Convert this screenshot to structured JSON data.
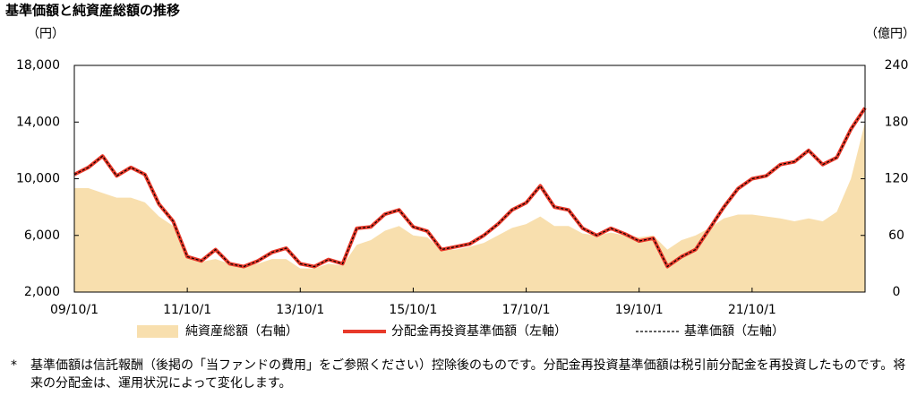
{
  "chart_data": {
    "type": "line",
    "title": "基準価額と純資産総額の推移",
    "y_label": "（円）",
    "y2_label": "（億円）",
    "footnote_marker": "*",
    "footnote": "基準価額は信託報酬（後掲の「当ファンドの費用」をご参照ください）控除後のものです。分配金再投資基準価額は税引前分配金を再投資したものです。将来の分配金は、運用状況によって変化します。",
    "x": [
      "09/10/1",
      "10/01/1",
      "10/04/1",
      "10/07/1",
      "10/10/1",
      "11/01/1",
      "11/04/1",
      "11/07/1",
      "11/10/1",
      "12/01/1",
      "12/04/1",
      "12/07/1",
      "12/10/1",
      "13/01/1",
      "13/04/1",
      "13/07/1",
      "13/10/1",
      "14/01/1",
      "14/04/1",
      "14/07/1",
      "14/10/1",
      "15/01/1",
      "15/04/1",
      "15/07/1",
      "15/10/1",
      "16/01/1",
      "16/04/1",
      "16/07/1",
      "16/10/1",
      "17/01/1",
      "17/04/1",
      "17/07/1",
      "17/10/1",
      "18/01/1",
      "18/04/1",
      "18/07/1",
      "18/10/1",
      "19/01/1",
      "19/04/1",
      "19/07/1",
      "19/10/1",
      "20/01/1",
      "20/04/1",
      "20/07/1",
      "20/10/1",
      "21/01/1",
      "21/04/1",
      "21/07/1",
      "21/10/1",
      "22/01/1",
      "22/04/1",
      "22/07/1",
      "22/10/1",
      "23/01/1",
      "23/04/1",
      "23/07/1",
      "23/10/1"
    ],
    "xticks": [
      "09/10/1",
      "11/10/1",
      "13/10/1",
      "15/10/1",
      "17/10/1",
      "19/10/1",
      "21/10/1"
    ],
    "ylim": [
      2000,
      18000
    ],
    "yticks": [
      {
        "value": 2000,
        "label": "2,000"
      },
      {
        "value": 6000,
        "label": "6,000"
      },
      {
        "value": 10000,
        "label": "10,000"
      },
      {
        "value": 14000,
        "label": "14,000"
      },
      {
        "value": 18000,
        "label": "18,000"
      }
    ],
    "y2lim": [
      0,
      240
    ],
    "y2ticks": [
      0,
      60,
      120,
      180,
      240
    ],
    "series": [
      {
        "name": "純資産総額（右軸）",
        "color": "#f8dfae",
        "kind": "area",
        "axis": "y2",
        "values": [
          110,
          110,
          105,
          100,
          100,
          95,
          80,
          70,
          40,
          32,
          35,
          30,
          28,
          30,
          35,
          35,
          25,
          25,
          30,
          28,
          50,
          55,
          65,
          70,
          60,
          58,
          45,
          45,
          48,
          52,
          60,
          68,
          72,
          80,
          70,
          70,
          62,
          60,
          63,
          60,
          58,
          60,
          45,
          55,
          60,
          68,
          78,
          82,
          82,
          80,
          78,
          75,
          78,
          75,
          85,
          120,
          180
        ]
      },
      {
        "name": "分配金再投資基準価額（左軸）",
        "color": "#e8392a",
        "kind": "line",
        "line_style": "solid",
        "values": [
          10300,
          10800,
          11600,
          10200,
          10800,
          10300,
          8200,
          7000,
          4500,
          4200,
          5000,
          4000,
          3800,
          4200,
          4800,
          5100,
          4000,
          3800,
          4300,
          4000,
          6500,
          6600,
          7500,
          7800,
          6600,
          6300,
          5000,
          5200,
          5400,
          6000,
          6800,
          7800,
          8300,
          9500,
          8000,
          7800,
          6500,
          6000,
          6500,
          6100,
          5600,
          5800,
          3800,
          4500,
          5000,
          6500,
          8000,
          9300,
          10000,
          10200,
          11000,
          11200,
          12000,
          11000,
          11500,
          13500,
          15000
        ]
      },
      {
        "name": "基準価額（左軸）",
        "color": "#000000",
        "kind": "line",
        "line_style": "dashed",
        "values": [
          10300,
          10800,
          11600,
          10200,
          10800,
          10300,
          8200,
          7000,
          4500,
          4200,
          5000,
          4000,
          3800,
          4200,
          4800,
          5100,
          4000,
          3800,
          4300,
          4000,
          6500,
          6600,
          7500,
          7800,
          6600,
          6300,
          5000,
          5200,
          5400,
          6000,
          6800,
          7800,
          8300,
          9500,
          8000,
          7800,
          6500,
          6000,
          6500,
          6100,
          5600,
          5800,
          3800,
          4500,
          5000,
          6500,
          8000,
          9300,
          10000,
          10200,
          11000,
          11200,
          12000,
          11000,
          11500,
          13500,
          15000
        ]
      }
    ]
  }
}
